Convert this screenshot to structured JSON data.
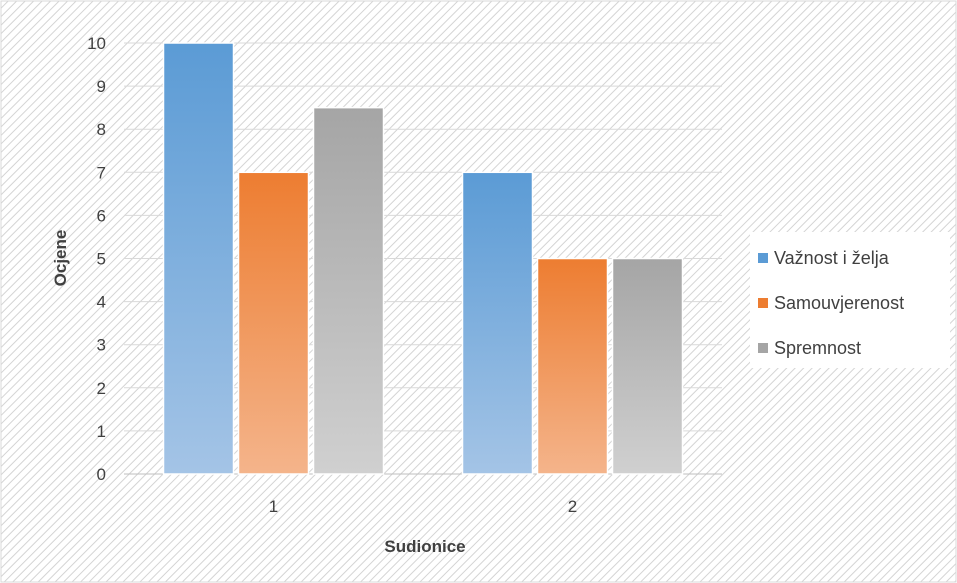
{
  "chart_data": {
    "type": "bar",
    "categories": [
      "1",
      "2"
    ],
    "series": [
      {
        "name": "Važnost i želja",
        "values": [
          10,
          7
        ],
        "color_top": "#5B9BD5",
        "color_bottom": "#A4C4E6"
      },
      {
        "name": "Samouvjerenost",
        "values": [
          7,
          5
        ],
        "color_top": "#ED7D31",
        "color_bottom": "#F4B48B"
      },
      {
        "name": "Spremnost",
        "values": [
          8.5,
          5
        ],
        "color_top": "#A5A5A5",
        "color_bottom": "#D0D0D0"
      }
    ],
    "title": "",
    "xlabel": "Sudionice",
    "ylabel": "Ocjene",
    "ylim": [
      0,
      10
    ],
    "yticks": [
      "0",
      "1",
      "2",
      "3",
      "4",
      "5",
      "6",
      "7",
      "8",
      "9",
      "10"
    ],
    "grid": true,
    "legend_position": "right",
    "background": "diagonal-hatch"
  }
}
